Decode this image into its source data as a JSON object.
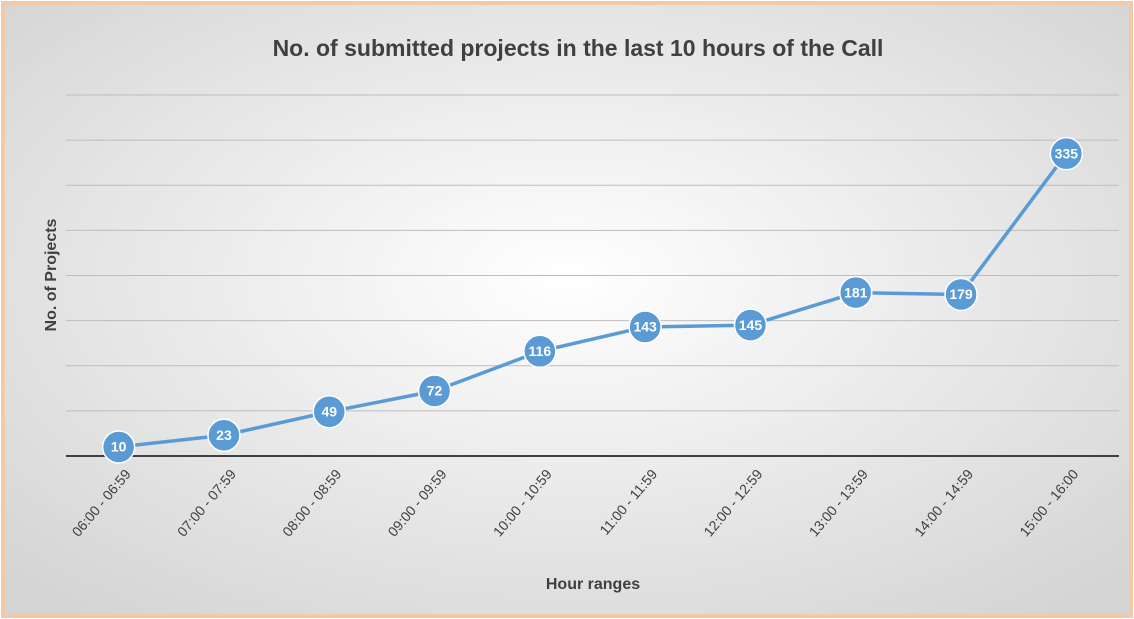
{
  "chart_data": {
    "type": "line",
    "title": "No. of submitted projects in the last 10 hours of the Call",
    "x_label": "Hour ranges",
    "y_label": "No. of Projects",
    "categories": [
      "06:00 - 06:59",
      "07:00 - 07:59",
      "08:00 - 08:59",
      "09:00 - 09:59",
      "10:00 - 10:59",
      "11:00 - 11:59",
      "12:00 - 12:59",
      "13:00 - 13:59",
      "14:00 - 14:59",
      "15:00 - 16:00"
    ],
    "series": [
      {
        "name": "No. of Projects",
        "color": "#5b9bd5",
        "values": [
          10,
          23,
          49,
          72,
          116,
          143,
          145,
          181,
          179,
          335
        ]
      }
    ],
    "ylim": [
      0,
      400
    ],
    "yticks": [
      0,
      50,
      100,
      150,
      200,
      250,
      300,
      350,
      400
    ],
    "grid": true
  }
}
